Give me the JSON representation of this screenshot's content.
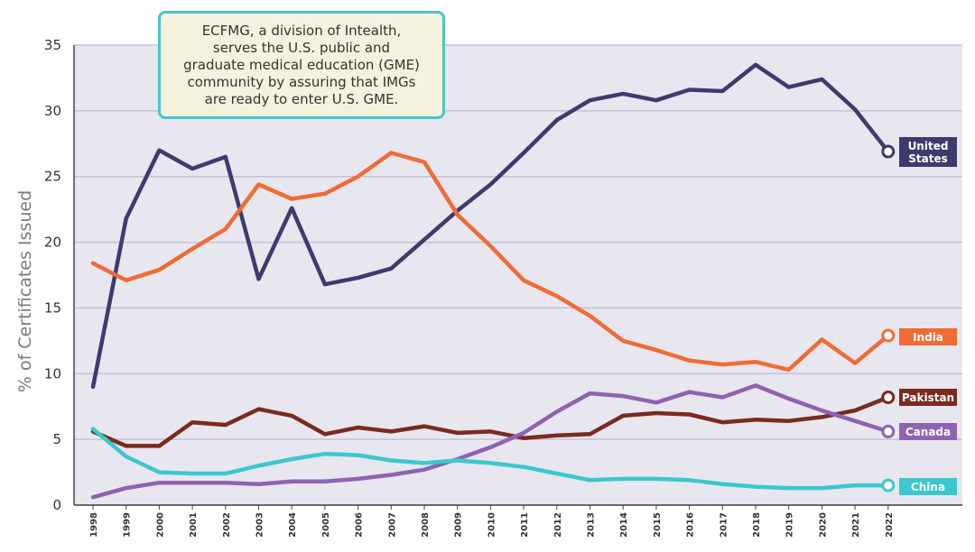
{
  "chart_data": {
    "type": "line",
    "title": "",
    "xlabel": "",
    "ylabel": "% of Certificates Issued",
    "ylim": [
      0,
      35
    ],
    "yticks": [
      0,
      5,
      10,
      15,
      20,
      25,
      30,
      35
    ],
    "grid": true,
    "legend": "end-of-line labels (right)",
    "x": [
      "1998",
      "1999",
      "2000",
      "2001",
      "2002",
      "2003",
      "2004",
      "2005",
      "2006",
      "2007",
      "2008",
      "2009",
      "2010",
      "2011",
      "2012",
      "2013",
      "2014",
      "2015",
      "2016",
      "2017",
      "2018",
      "2019",
      "2020",
      "2021",
      "2022"
    ],
    "series": [
      {
        "name": "United States",
        "label": "United\nStates",
        "color": "#3d3b6e",
        "values": [
          9.0,
          21.8,
          27.0,
          25.6,
          26.5,
          17.2,
          22.6,
          16.8,
          17.3,
          18.0,
          20.2,
          22.4,
          24.4,
          26.8,
          29.3,
          30.8,
          31.3,
          30.8,
          31.6,
          31.5,
          33.5,
          31.8,
          32.4,
          30.1,
          26.9
        ]
      },
      {
        "name": "India",
        "label": "India",
        "color": "#ef6c35",
        "values": [
          18.4,
          17.1,
          17.9,
          19.5,
          21.0,
          24.4,
          23.3,
          23.7,
          25.0,
          26.8,
          26.1,
          22.1,
          19.7,
          17.1,
          15.9,
          14.4,
          12.5,
          11.8,
          11.0,
          10.7,
          10.9,
          10.3,
          12.6,
          10.8,
          12.9
        ]
      },
      {
        "name": "Pakistan",
        "label": "Pakistan",
        "color": "#7a2a1e",
        "values": [
          5.6,
          4.5,
          4.5,
          6.3,
          6.1,
          7.3,
          6.8,
          5.4,
          5.9,
          5.6,
          6.0,
          5.5,
          5.6,
          5.1,
          5.3,
          5.4,
          6.8,
          7.0,
          6.9,
          6.3,
          6.5,
          6.4,
          6.7,
          7.2,
          8.2
        ]
      },
      {
        "name": "Canada",
        "label": "Canada",
        "color": "#8e63b0",
        "values": [
          0.6,
          1.3,
          1.7,
          1.7,
          1.7,
          1.6,
          1.8,
          1.8,
          2.0,
          2.3,
          2.7,
          3.5,
          4.4,
          5.5,
          7.1,
          8.5,
          8.3,
          7.8,
          8.6,
          8.2,
          9.1,
          8.1,
          7.2,
          6.4,
          5.6
        ]
      },
      {
        "name": "China",
        "label": "China",
        "color": "#3ac8ce",
        "values": [
          5.8,
          3.7,
          2.5,
          2.4,
          2.4,
          3.0,
          3.5,
          3.9,
          3.8,
          3.4,
          3.2,
          3.4,
          3.2,
          2.9,
          2.4,
          1.9,
          2.0,
          2.0,
          1.9,
          1.6,
          1.4,
          1.3,
          1.3,
          1.5,
          1.5
        ]
      }
    ],
    "annotation": "ECFMG, a division of Intealth,\nserves the U.S. public and\ngraduate medical education (GME)\ncommunity by assuring that IMGs\nare ready to enter U.S. GME."
  },
  "colors": {
    "plot_background": "#e8e6ef",
    "gridline": "#c5c2d6",
    "annotation_border": "#4dc3c8",
    "annotation_fill": "#f4f1de"
  }
}
